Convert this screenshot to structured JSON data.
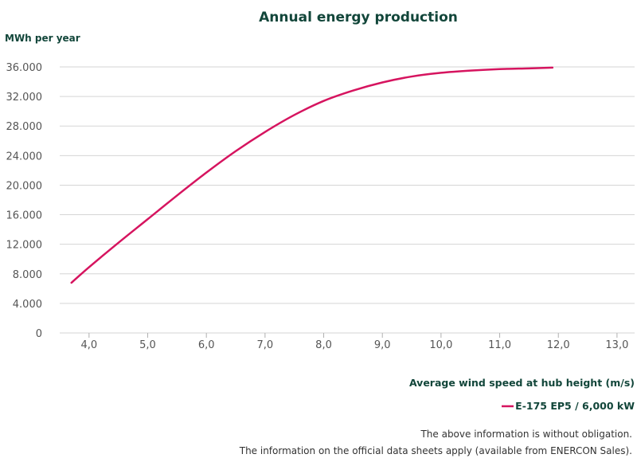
{
  "chart_data": {
    "type": "line",
    "title": "Annual energy production",
    "ylabel": "MWh per year",
    "xlabel": "Average wind speed at hub height (m/s)",
    "ylim": [
      0,
      36000
    ],
    "yticks": [
      0,
      4000,
      8000,
      12000,
      16000,
      20000,
      24000,
      28000,
      32000,
      36000
    ],
    "ytick_labels": [
      "0",
      "4.000",
      "8.000",
      "12.000",
      "16.000",
      "20.000",
      "24.000",
      "28.000",
      "32.000",
      "36.000"
    ],
    "xlim": [
      3.5,
      13.3
    ],
    "xticks": [
      4,
      5,
      6,
      7,
      8,
      9,
      10,
      11,
      12,
      13
    ],
    "xtick_labels": [
      "4,0",
      "5,0",
      "6,0",
      "7,0",
      "8,0",
      "9,0",
      "10,0",
      "11,0",
      "12,0",
      "13,0"
    ],
    "grid": "horizontal",
    "legend_position": "bottom-right",
    "series": [
      {
        "name": "E-175 EP5 / 6,000 kW",
        "color": "#d6145f",
        "x": [
          3.7,
          4.0,
          4.5,
          5.0,
          5.5,
          6.0,
          6.5,
          7.0,
          7.5,
          8.0,
          8.5,
          9.0,
          9.5,
          10.0,
          10.5,
          11.0,
          11.5,
          11.9
        ],
        "y": [
          6800,
          8900,
          12200,
          15400,
          18600,
          21700,
          24600,
          27200,
          29500,
          31400,
          32800,
          33900,
          34700,
          35200,
          35500,
          35700,
          35800,
          35900
        ]
      }
    ]
  },
  "footnotes": [
    "The above information is without obligation.",
    "The information on the official data sheets apply (available from ENERCON Sales)."
  ]
}
